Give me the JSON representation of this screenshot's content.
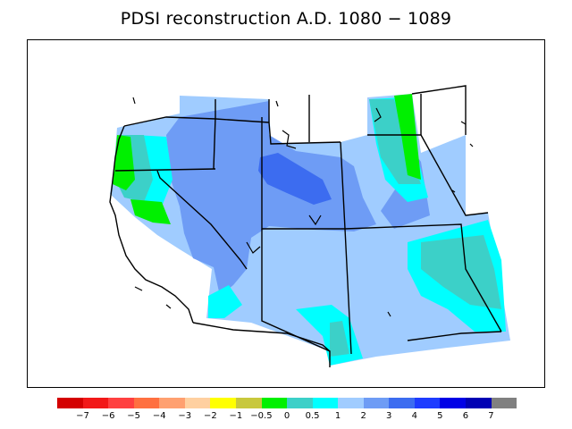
{
  "title": "PDSI reconstruction A.D. 1080 − 1089",
  "colors": {
    "ocean": "#ffffff",
    "land_default": "#a7cdfb",
    "border": "#000000"
  },
  "legend": {
    "colors": [
      "#d40000",
      "#f21818",
      "#ff4040",
      "#ff7040",
      "#ffa070",
      "#ffd0a0",
      "#ffff00",
      "#c8c83c",
      "#00f000",
      "#3cd0c8",
      "#00ffff",
      "#a0ccff",
      "#6e9cf5",
      "#3c6cf0",
      "#1e3cff",
      "#0000e6",
      "#0000b4",
      "#808080"
    ],
    "labels": [
      "−7",
      "−6",
      "−5",
      "−4",
      "−3",
      "−2",
      "−1",
      "−0.5",
      "0",
      "0.5",
      "1",
      "2",
      "3",
      "4",
      "5",
      "6",
      "7"
    ]
  }
}
